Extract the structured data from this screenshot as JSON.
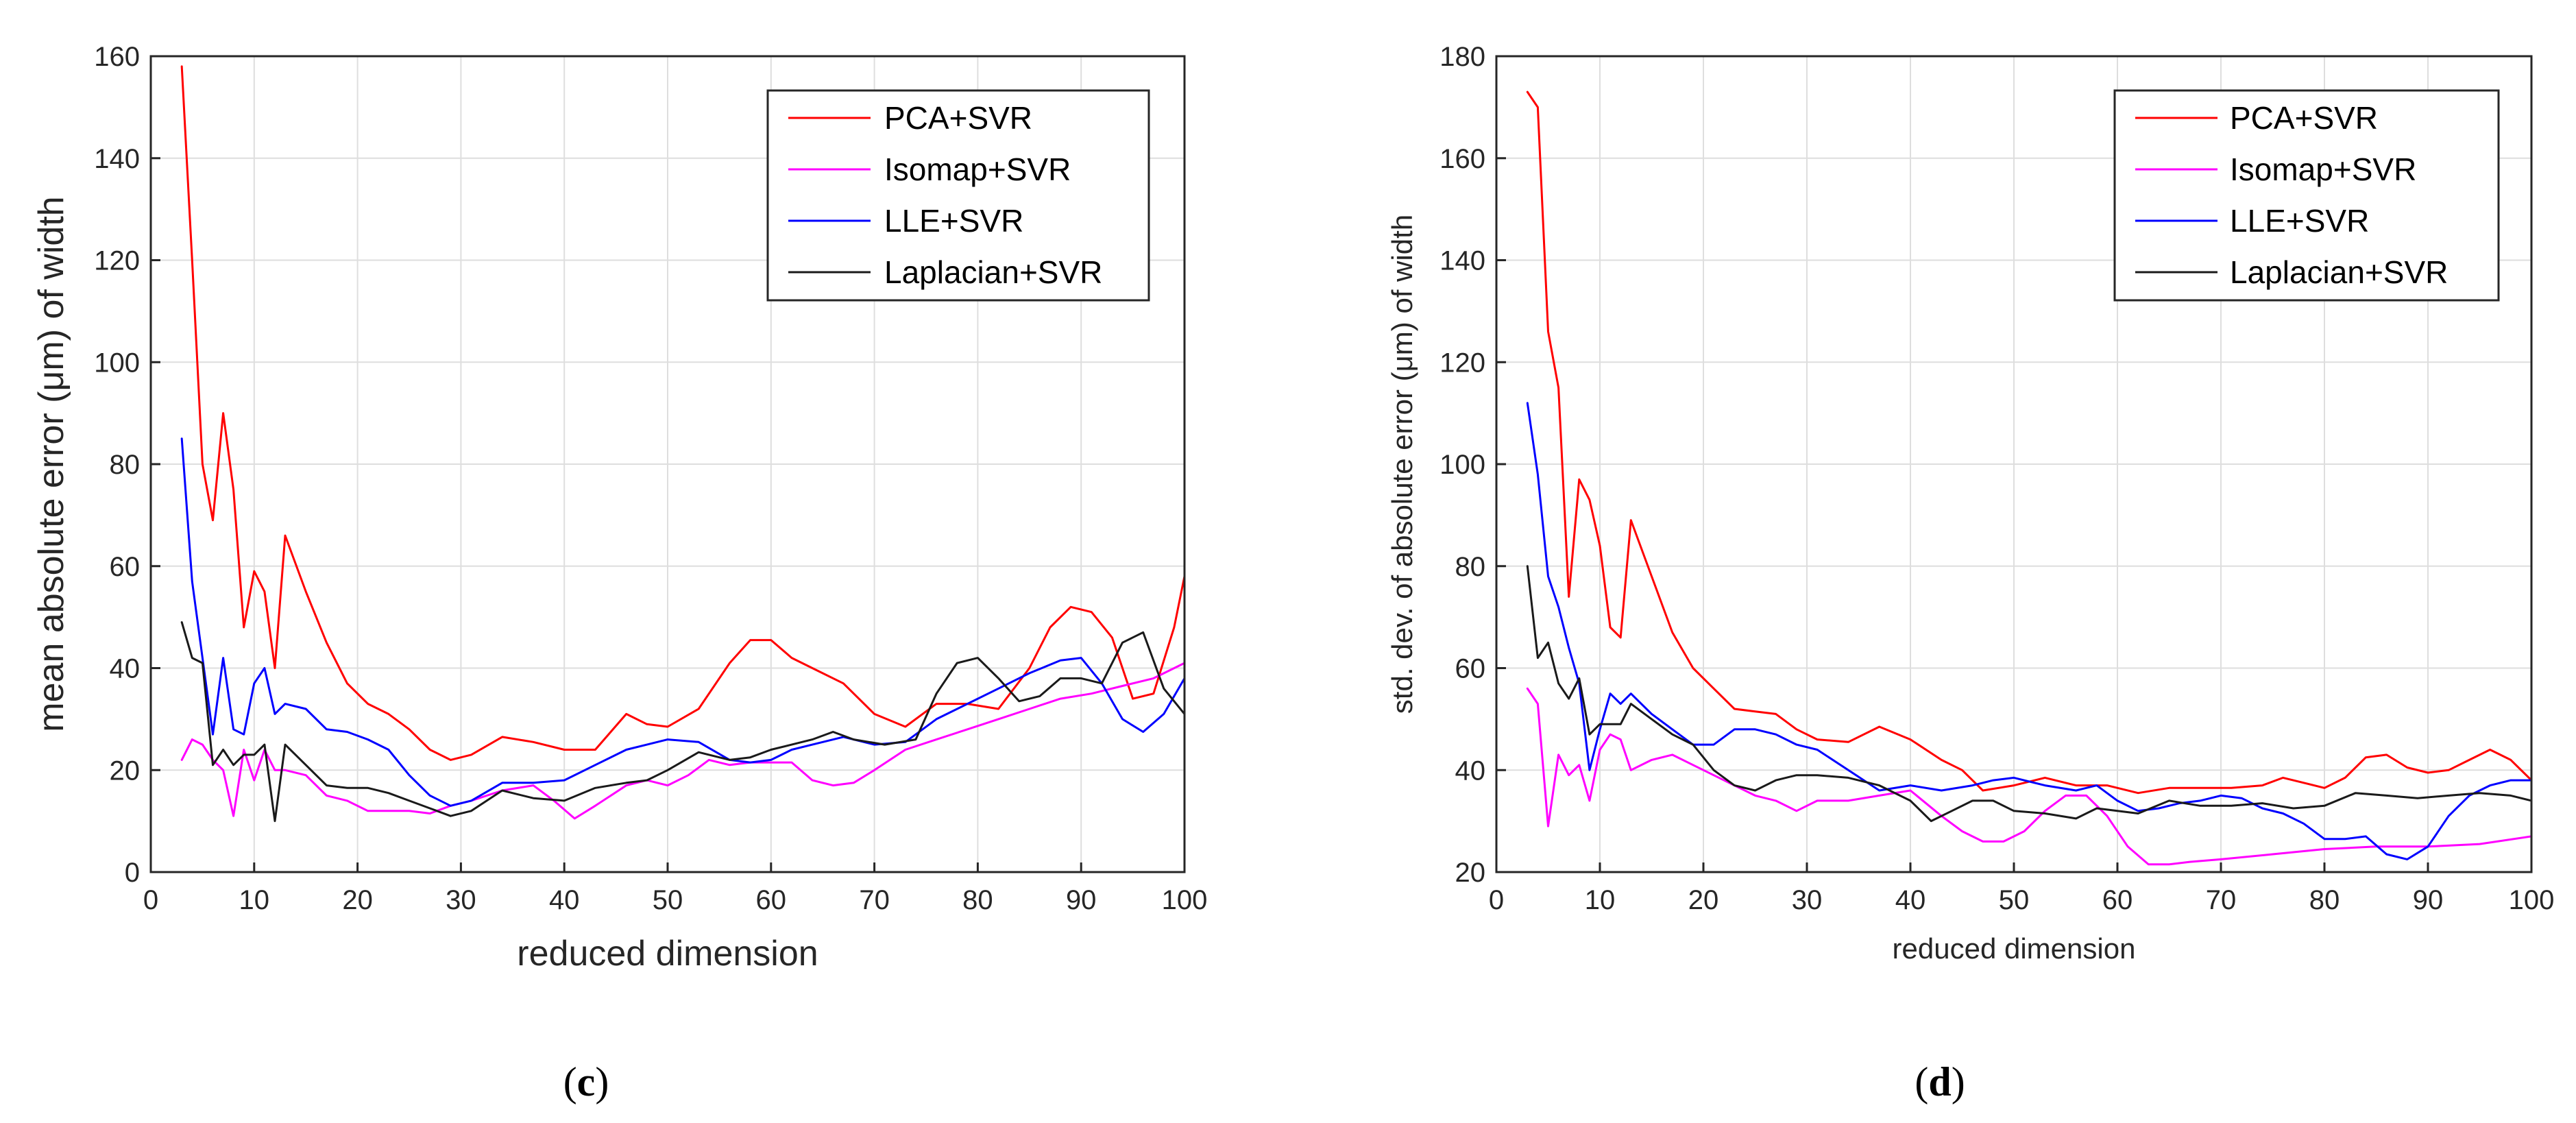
{
  "chart_data": [
    {
      "type": "line",
      "panel_label": {
        "open": "(",
        "letter": "c",
        "close": ")"
      },
      "xlabel": "reduced dimension",
      "ylabel": "mean absolute error (μm) of width",
      "xlim": [
        0,
        100
      ],
      "ylim": [
        0,
        160
      ],
      "xticks": [
        0,
        10,
        20,
        30,
        40,
        50,
        60,
        70,
        80,
        90,
        100
      ],
      "yticks": [
        0,
        20,
        40,
        60,
        80,
        100,
        120,
        140,
        160
      ],
      "grid": true,
      "legend_position": "top-right",
      "series": [
        {
          "name": "PCA+SVR",
          "color": "#ff0000",
          "x": [
            3,
            4,
            5,
            6,
            7,
            8,
            9,
            10,
            11,
            12,
            13,
            15,
            17,
            19,
            21,
            23,
            25,
            27,
            29,
            31,
            34,
            37,
            40,
            43,
            46,
            48,
            50,
            53,
            56,
            58,
            60,
            62,
            64,
            67,
            70,
            73,
            76,
            79,
            82,
            85,
            87,
            89,
            91,
            93,
            95,
            97,
            99,
            100
          ],
          "y": [
            158,
            120,
            80,
            69,
            90,
            75,
            48,
            59,
            55,
            40,
            66,
            55,
            45,
            37,
            33,
            31,
            28,
            24,
            22,
            23,
            26.5,
            25.5,
            24,
            24,
            31,
            29,
            28.5,
            32,
            41,
            45.5,
            45.5,
            42,
            40,
            37,
            31,
            28.5,
            33,
            33,
            32,
            40,
            48,
            52,
            51,
            46,
            34,
            35,
            48,
            58
          ]
        },
        {
          "name": "Isomap+SVR",
          "color": "#ff00ff",
          "x": [
            3,
            4,
            5,
            6,
            7,
            8,
            9,
            10,
            11,
            12,
            13,
            15,
            17,
            19,
            21,
            23,
            25,
            27,
            29,
            31,
            34,
            37,
            39,
            41,
            43,
            46,
            48,
            50,
            52,
            54,
            56,
            58,
            60,
            62,
            64,
            66,
            68,
            70,
            73,
            76,
            79,
            82,
            85,
            88,
            91,
            94,
            97,
            100
          ],
          "y": [
            22,
            26,
            25,
            22,
            20,
            11,
            24,
            18,
            24,
            20,
            20,
            19,
            15,
            14,
            12,
            12,
            12,
            11.5,
            13,
            14,
            16,
            17,
            14,
            10.5,
            13,
            17,
            18,
            17,
            19,
            22,
            21,
            21.5,
            21.5,
            21.5,
            18,
            17,
            17.5,
            20,
            24,
            26,
            28,
            30,
            32,
            34,
            35,
            36.5,
            38,
            41
          ]
        },
        {
          "name": "LLE+SVR",
          "color": "#0000ff",
          "x": [
            3,
            4,
            5,
            6,
            7,
            8,
            9,
            10,
            11,
            12,
            13,
            15,
            17,
            19,
            21,
            23,
            25,
            27,
            29,
            31,
            34,
            37,
            40,
            43,
            46,
            48,
            50,
            53,
            56,
            58,
            60,
            62,
            64,
            67,
            70,
            73,
            76,
            79,
            82,
            85,
            88,
            90,
            92,
            94,
            96,
            98,
            100
          ],
          "y": [
            85,
            57,
            42,
            27,
            42,
            28,
            27,
            37,
            40,
            31,
            33,
            32,
            28,
            27.5,
            26,
            24,
            19,
            15,
            13,
            14,
            17.5,
            17.5,
            18,
            21,
            24,
            25,
            26,
            25.5,
            22,
            21.5,
            22,
            24,
            25,
            26.5,
            25,
            25.5,
            30,
            33,
            36,
            39,
            41.5,
            42,
            37,
            30,
            27.5,
            31,
            38
          ]
        },
        {
          "name": "Laplacian+SVR",
          "color": "#1a1a1a",
          "x": [
            3,
            4,
            5,
            6,
            7,
            8,
            9,
            10,
            11,
            12,
            13,
            15,
            17,
            19,
            21,
            23,
            25,
            27,
            29,
            31,
            34,
            37,
            40,
            43,
            46,
            48,
            50,
            53,
            56,
            58,
            60,
            62,
            64,
            66,
            68,
            71,
            74,
            76,
            78,
            80,
            82,
            84,
            86,
            88,
            90,
            92,
            94,
            96,
            98,
            100
          ],
          "y": [
            49,
            42,
            41,
            21,
            24,
            21,
            23,
            23,
            25,
            10,
            25,
            21,
            17,
            16.5,
            16.5,
            15.5,
            14,
            12.5,
            11,
            12,
            16,
            14.5,
            14,
            16.5,
            17.5,
            18,
            20,
            23.5,
            22,
            22.5,
            24,
            25,
            26,
            27.5,
            26,
            25,
            26,
            35,
            41,
            42,
            38,
            33.5,
            34.5,
            38,
            38,
            37,
            45,
            47,
            36,
            31
          ]
        }
      ]
    },
    {
      "type": "line",
      "panel_label": {
        "open": "(",
        "letter": "d",
        "close": ")"
      },
      "xlabel": "reduced dimension",
      "ylabel": "std. dev. of absolute error (μm) of width",
      "xlim": [
        0,
        100
      ],
      "ylim": [
        20,
        180
      ],
      "xticks": [
        0,
        10,
        20,
        30,
        40,
        50,
        60,
        70,
        80,
        90,
        100
      ],
      "yticks": [
        20,
        40,
        60,
        80,
        100,
        120,
        140,
        160,
        180
      ],
      "grid": true,
      "legend_position": "top-right",
      "series": [
        {
          "name": "PCA+SVR",
          "color": "#ff0000",
          "x": [
            3,
            4,
            5,
            6,
            7,
            8,
            9,
            10,
            11,
            12,
            13,
            15,
            17,
            19,
            21,
            23,
            25,
            27,
            29,
            31,
            34,
            37,
            40,
            43,
            45,
            47,
            50,
            53,
            56,
            59,
            62,
            65,
            68,
            71,
            74,
            76,
            78,
            80,
            82,
            84,
            86,
            88,
            90,
            92,
            94,
            96,
            98,
            100
          ],
          "y": [
            173,
            170,
            126,
            115,
            74,
            97,
            93,
            84,
            68,
            66,
            89,
            78,
            67,
            60,
            56,
            52,
            51.5,
            51,
            48,
            46,
            45.5,
            48.5,
            46,
            42,
            40,
            36,
            37,
            38.5,
            37,
            37,
            35.5,
            36.5,
            36.5,
            36.5,
            37,
            38.5,
            37.5,
            36.5,
            38.5,
            42.5,
            43,
            40.5,
            39.5,
            40,
            42,
            44,
            42,
            38
          ]
        },
        {
          "name": "Isomap+SVR",
          "color": "#ff00ff",
          "x": [
            3,
            4,
            5,
            6,
            7,
            8,
            9,
            10,
            11,
            12,
            13,
            15,
            17,
            19,
            21,
            23,
            25,
            27,
            29,
            31,
            34,
            37,
            40,
            43,
            45,
            47,
            49,
            51,
            53,
            55,
            57,
            59,
            61,
            63,
            65,
            67,
            70,
            75,
            80,
            85,
            90,
            95,
            100
          ],
          "y": [
            56,
            53,
            29,
            43,
            39,
            41,
            34,
            44,
            47,
            46,
            40,
            42,
            43,
            41,
            39,
            37,
            35,
            34,
            32,
            34,
            34,
            35,
            36,
            31,
            28,
            26,
            26,
            28,
            32,
            35,
            35,
            31,
            25,
            21.5,
            21.5,
            22,
            22.5,
            23.5,
            24.5,
            25,
            25,
            25.5,
            27
          ]
        },
        {
          "name": "LLE+SVR",
          "color": "#0000ff",
          "x": [
            3,
            4,
            5,
            6,
            7,
            8,
            9,
            10,
            11,
            12,
            13,
            15,
            17,
            19,
            21,
            23,
            25,
            27,
            29,
            31,
            34,
            37,
            40,
            43,
            46,
            48,
            50,
            53,
            56,
            58,
            60,
            62,
            64,
            66,
            68,
            70,
            72,
            74,
            76,
            78,
            80,
            82,
            84,
            86,
            88,
            90,
            92,
            94,
            96,
            98,
            100
          ],
          "y": [
            112,
            98,
            78,
            72,
            64,
            57,
            40,
            48,
            55,
            53,
            55,
            51,
            48,
            45,
            45,
            48,
            48,
            47,
            45,
            44,
            40,
            36,
            37,
            36,
            37,
            38,
            38.5,
            37,
            36,
            37,
            34,
            32,
            32.5,
            33.5,
            34,
            35,
            34.5,
            32.5,
            31.5,
            29.5,
            26.5,
            26.5,
            27,
            23.5,
            22.5,
            25,
            31,
            35,
            37,
            38,
            38
          ]
        },
        {
          "name": "Laplacian+SVR",
          "color": "#1a1a1a",
          "x": [
            3,
            4,
            5,
            6,
            7,
            8,
            9,
            10,
            11,
            12,
            13,
            15,
            17,
            19,
            21,
            23,
            25,
            27,
            29,
            31,
            34,
            37,
            40,
            42,
            44,
            46,
            48,
            50,
            53,
            56,
            58,
            60,
            62,
            65,
            68,
            71,
            74,
            77,
            80,
            83,
            86,
            89,
            92,
            95,
            98,
            100
          ],
          "y": [
            80,
            62,
            65,
            57,
            54,
            58,
            47,
            49,
            49,
            49,
            53,
            50,
            47,
            45,
            40,
            37,
            36,
            38,
            39,
            39,
            38.5,
            37,
            34,
            30,
            32,
            34,
            34,
            32,
            31.5,
            30.5,
            32.5,
            32,
            31.5,
            34,
            33,
            33,
            33.5,
            32.5,
            33,
            35.5,
            35,
            34.5,
            35,
            35.5,
            35,
            34
          ]
        }
      ]
    }
  ]
}
